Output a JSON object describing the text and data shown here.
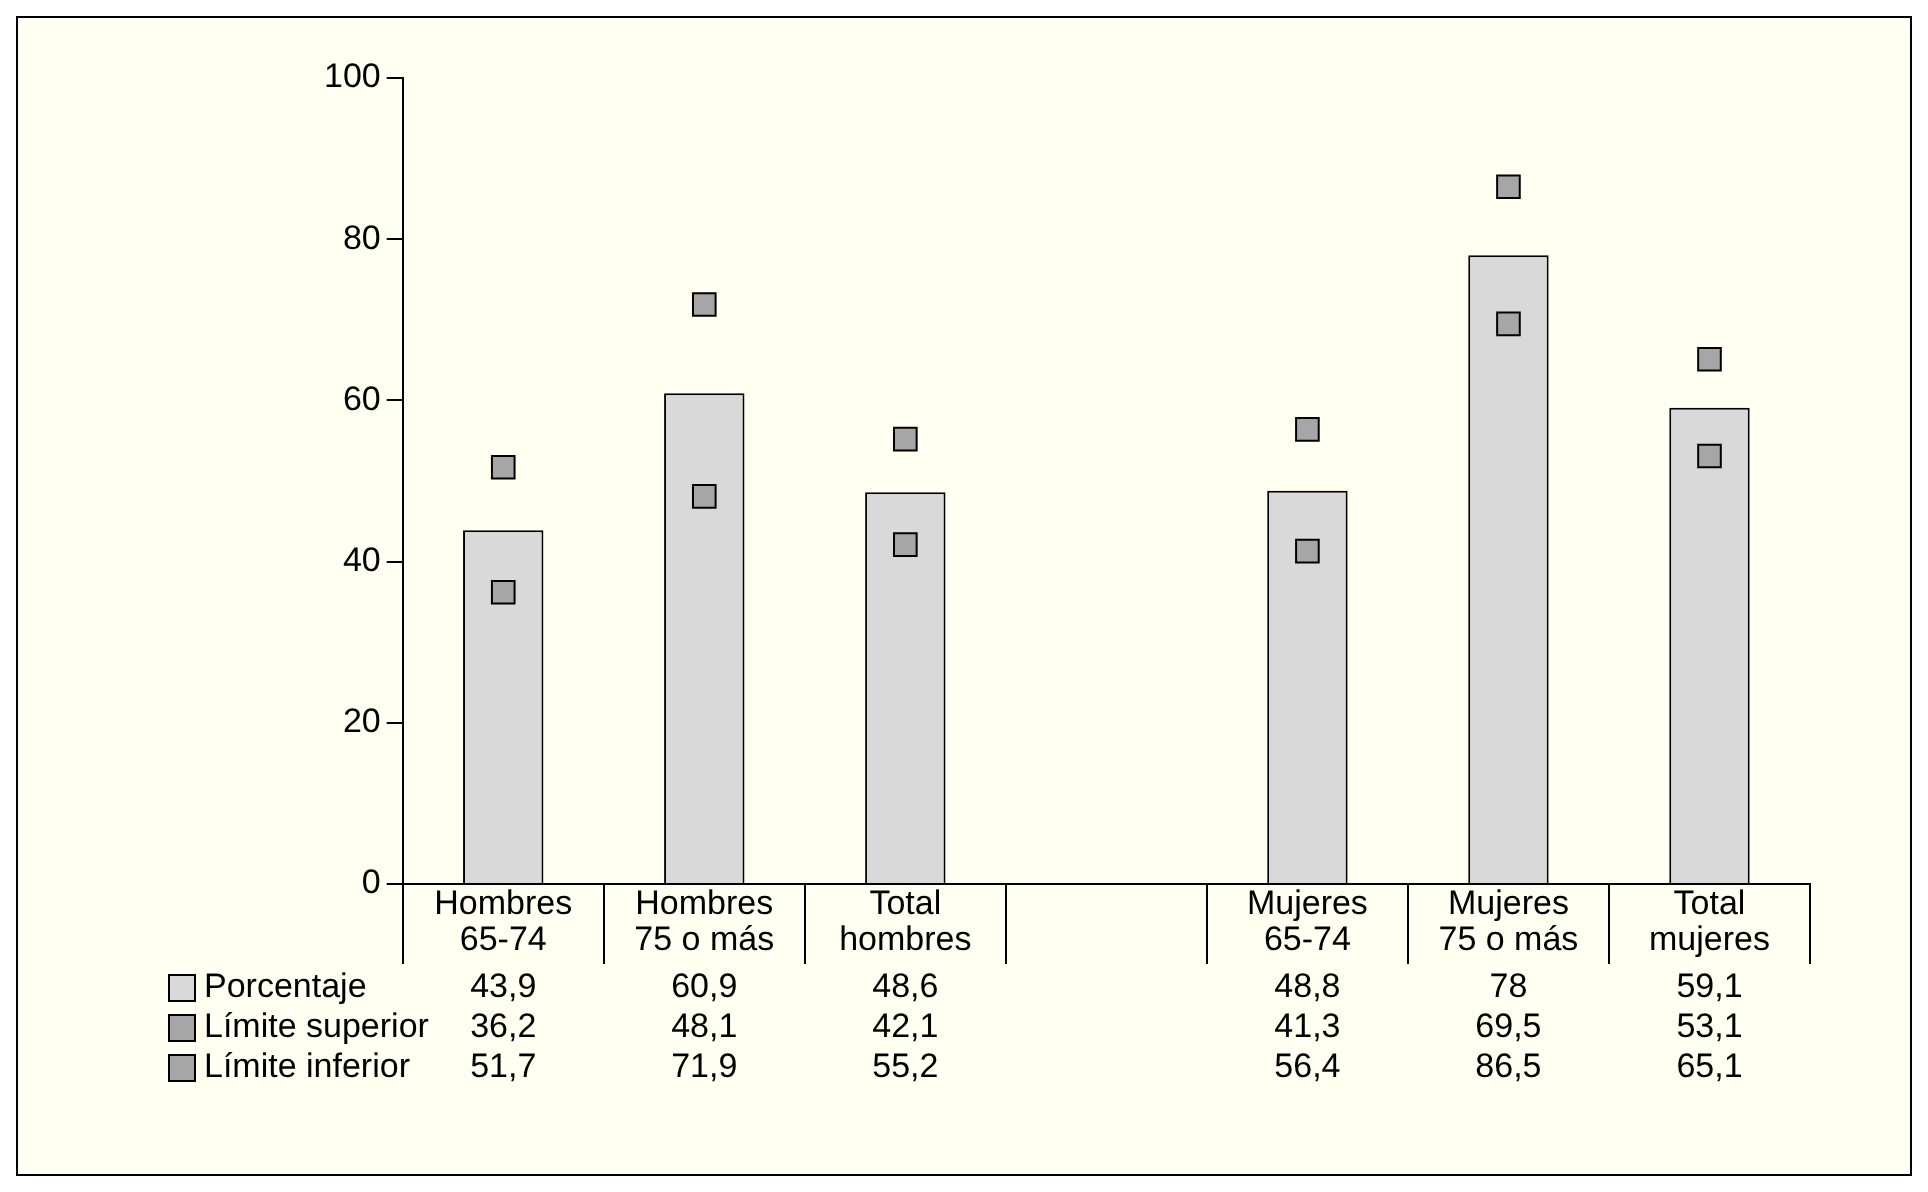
{
  "chart_data": {
    "type": "bar",
    "categories": [
      "Hombres 65-74",
      "Hombres 75 o más",
      "Total hombres",
      null,
      "Mujeres 65-74",
      "Mujeres 75 o más",
      "Total mujeres"
    ],
    "series": [
      {
        "name": "Porcentaje",
        "color": "#d9d9d9",
        "values": [
          43.9,
          60.9,
          48.6,
          null,
          48.8,
          78,
          59.1
        ],
        "value_labels": [
          "43,9",
          "60,9",
          "48,6",
          null,
          "48,8",
          "78",
          "59,1"
        ]
      },
      {
        "name": "Límite superior",
        "type": "scatter",
        "color": "#a6a6a6",
        "values": [
          36.2,
          48.1,
          42.1,
          null,
          41.3,
          69.5,
          53.1
        ],
        "value_labels": [
          "36,2",
          "48,1",
          "42,1",
          null,
          "41,3",
          "69,5",
          "53,1"
        ]
      },
      {
        "name": "Límite inferior",
        "type": "scatter",
        "color": "#a6a6a6",
        "values": [
          51.7,
          71.9,
          55.2,
          null,
          56.4,
          86.5,
          65.1
        ],
        "value_labels": [
          "51,7",
          "71,9",
          "55,2",
          null,
          "56,4",
          "86,5",
          "65,1"
        ]
      }
    ],
    "ylim": [
      0,
      100
    ],
    "yticks": [
      0,
      20,
      40,
      60,
      80,
      100
    ],
    "grid": false,
    "legend": "bottom",
    "marker": "square"
  }
}
